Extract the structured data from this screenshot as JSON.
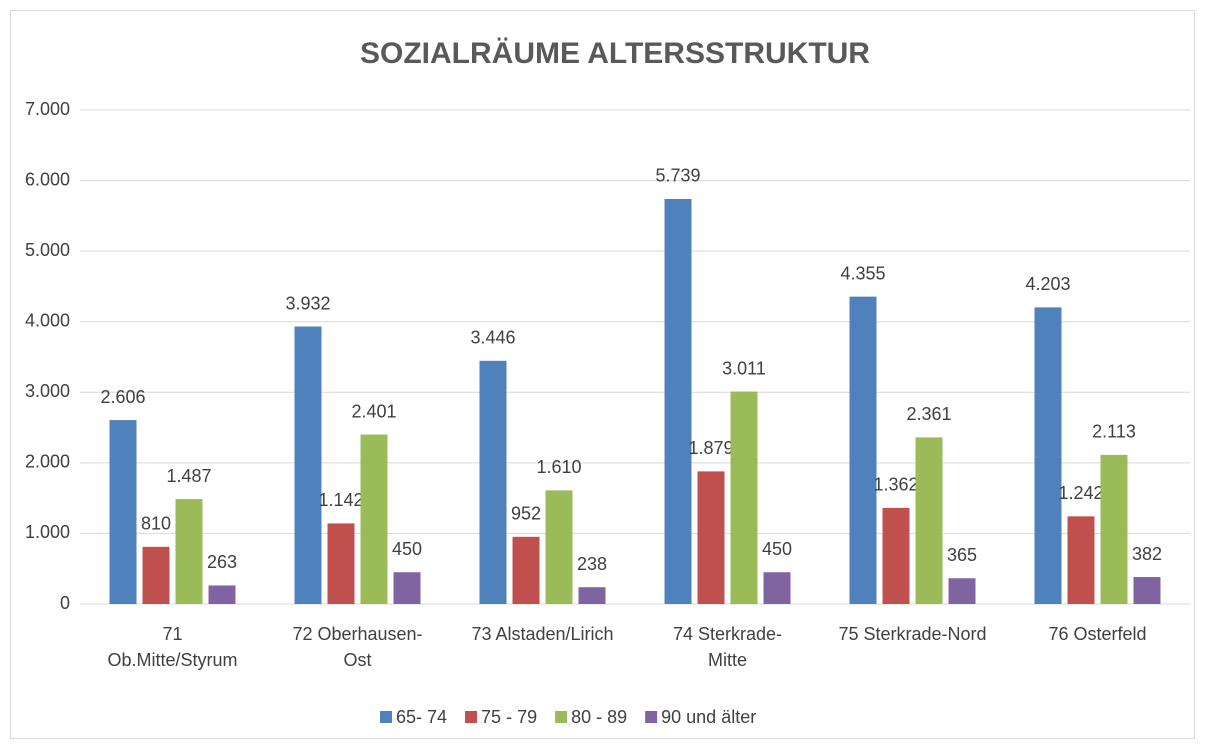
{
  "chart_data": {
    "type": "bar",
    "title": "SOZIALRÄUME ALTERSSTRUKTUR",
    "categories": [
      "71\nOb.Mitte/Styrum",
      "72 Oberhausen-\nOst",
      "73 Alstaden/Lirich",
      "74 Sterkrade-\nMitte",
      "75 Sterkrade-Nord",
      "76 Osterfeld"
    ],
    "series": [
      {
        "name": "65- 74",
        "color": "#4f81bd",
        "values": [
          2606,
          3932,
          3446,
          5739,
          4355,
          4203
        ],
        "value_labels": [
          "2.606",
          "3.932",
          "3.446",
          "5.739",
          "4.355",
          "4.203"
        ]
      },
      {
        "name": "75 - 79",
        "color": "#c0504d",
        "values": [
          810,
          1142,
          952,
          1879,
          1362,
          1242
        ],
        "value_labels": [
          "810",
          "1.142",
          "952",
          "1.879",
          "1.362",
          "1.242"
        ]
      },
      {
        "name": "80 - 89",
        "color": "#9bbb59",
        "values": [
          1487,
          2401,
          1610,
          3011,
          2361,
          2113
        ],
        "value_labels": [
          "1.487",
          "2.401",
          "1.610",
          "3.011",
          "2.361",
          "2.113"
        ]
      },
      {
        "name": "90 und älter",
        "color": "#8064a2",
        "values": [
          263,
          450,
          238,
          450,
          365,
          382
        ],
        "value_labels": [
          "263",
          "450",
          "238",
          "450",
          "365",
          "382"
        ]
      }
    ],
    "ylim": [
      0,
      7000
    ],
    "yticks": [
      0,
      {
        "value": 1000,
        "label": "1.000"
      },
      {
        "value": 2000,
        "label": "2.000"
      },
      {
        "value": 3000,
        "label": "3.000"
      },
      {
        "value": 4000,
        "label": "4.000"
      },
      {
        "value": 5000,
        "label": "5.000"
      },
      {
        "value": 6000,
        "label": "6.000"
      },
      {
        "value": 7000,
        "label": "7.000"
      }
    ],
    "grid": true,
    "legend": "bottom"
  }
}
